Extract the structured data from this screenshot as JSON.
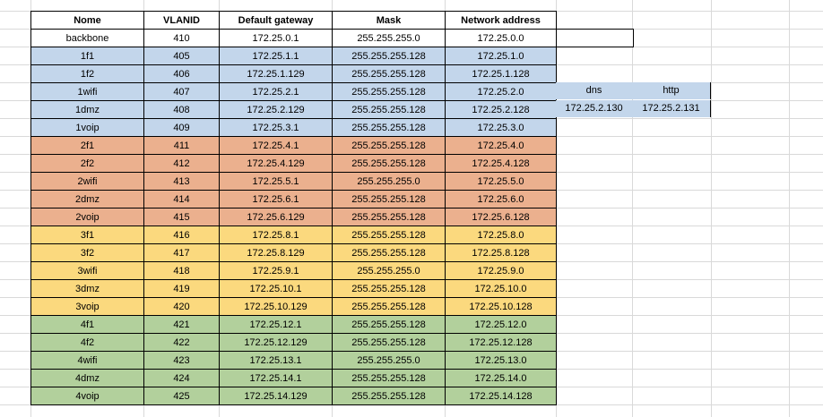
{
  "headers": {
    "name": "Nome",
    "vlanid": "VLANID",
    "gateway": "Default gateway",
    "mask": "Mask",
    "network": "Network address"
  },
  "rows": [
    {
      "name": "backbone",
      "vlanid": "410",
      "gateway": "172.25.0.1",
      "mask": "255.255.255.0",
      "network": "172.25.0.0",
      "color": "#ffffff"
    },
    {
      "name": "1f1",
      "vlanid": "405",
      "gateway": "172.25.1.1",
      "mask": "255.255.255.128",
      "network": "172.25.1.0",
      "color": "#c3d6eb"
    },
    {
      "name": "1f2",
      "vlanid": "406",
      "gateway": "172.25.1.129",
      "mask": "255.255.255.128",
      "network": "172.25.1.128",
      "color": "#c3d6eb"
    },
    {
      "name": "1wifi",
      "vlanid": "407",
      "gateway": "172.25.2.1",
      "mask": "255.255.255.128",
      "network": "172.25.2.0",
      "color": "#c3d6eb"
    },
    {
      "name": "1dmz",
      "vlanid": "408",
      "gateway": "172.25.2.129",
      "mask": "255.255.255.128",
      "network": "172.25.2.128",
      "color": "#c3d6eb"
    },
    {
      "name": "1voip",
      "vlanid": "409",
      "gateway": "172.25.3.1",
      "mask": "255.255.255.128",
      "network": "172.25.3.0",
      "color": "#c3d6eb"
    },
    {
      "name": "2f1",
      "vlanid": "411",
      "gateway": "172.25.4.1",
      "mask": "255.255.255.128",
      "network": "172.25.4.0",
      "color": "#ebb08e"
    },
    {
      "name": "2f2",
      "vlanid": "412",
      "gateway": "172.25.4.129",
      "mask": "255.255.255.128",
      "network": "172.25.4.128",
      "color": "#ebb08e"
    },
    {
      "name": "2wifi",
      "vlanid": "413",
      "gateway": "172.25.5.1",
      "mask": "255.255.255.0",
      "network": "172.25.5.0",
      "color": "#ebb08e"
    },
    {
      "name": "2dmz",
      "vlanid": "414",
      "gateway": "172.25.6.1",
      "mask": "255.255.255.128",
      "network": "172.25.6.0",
      "color": "#ebb08e"
    },
    {
      "name": "2voip",
      "vlanid": "415",
      "gateway": "172.25.6.129",
      "mask": "255.255.255.128",
      "network": "172.25.6.128",
      "color": "#ebb08e"
    },
    {
      "name": "3f1",
      "vlanid": "416",
      "gateway": "172.25.8.1",
      "mask": "255.255.255.128",
      "network": "172.25.8.0",
      "color": "#fbd97e"
    },
    {
      "name": "3f2",
      "vlanid": "417",
      "gateway": "172.25.8.129",
      "mask": "255.255.255.128",
      "network": "172.25.8.128",
      "color": "#fbd97e"
    },
    {
      "name": "3wifi",
      "vlanid": "418",
      "gateway": "172.25.9.1",
      "mask": "255.255.255.0",
      "network": "172.25.9.0",
      "color": "#fbd97e"
    },
    {
      "name": "3dmz",
      "vlanid": "419",
      "gateway": "172.25.10.1",
      "mask": "255.255.255.128",
      "network": "172.25.10.0",
      "color": "#fbd97e"
    },
    {
      "name": "3voip",
      "vlanid": "420",
      "gateway": "172.25.10.129",
      "mask": "255.255.255.128",
      "network": "172.25.10.128",
      "color": "#fbd97e"
    },
    {
      "name": "4f1",
      "vlanid": "421",
      "gateway": "172.25.12.1",
      "mask": "255.255.255.128",
      "network": "172.25.12.0",
      "color": "#b2d09c"
    },
    {
      "name": "4f2",
      "vlanid": "422",
      "gateway": "172.25.12.129",
      "mask": "255.255.255.128",
      "network": "172.25.12.128",
      "color": "#b2d09c"
    },
    {
      "name": "4wifi",
      "vlanid": "423",
      "gateway": "172.25.13.1",
      "mask": "255.255.255.0",
      "network": "172.25.13.0",
      "color": "#b2d09c"
    },
    {
      "name": "4dmz",
      "vlanid": "424",
      "gateway": "172.25.14.1",
      "mask": "255.255.255.128",
      "network": "172.25.14.0",
      "color": "#b2d09c"
    },
    {
      "name": "4voip",
      "vlanid": "425",
      "gateway": "172.25.14.129",
      "mask": "255.255.255.128",
      "network": "172.25.14.128",
      "color": "#b2d09c"
    }
  ],
  "side": {
    "dns_label": "dns",
    "http_label": "http",
    "dns_ip": "172.25.2.130",
    "http_ip": "172.25.2.131",
    "color": "#c3d6eb"
  }
}
